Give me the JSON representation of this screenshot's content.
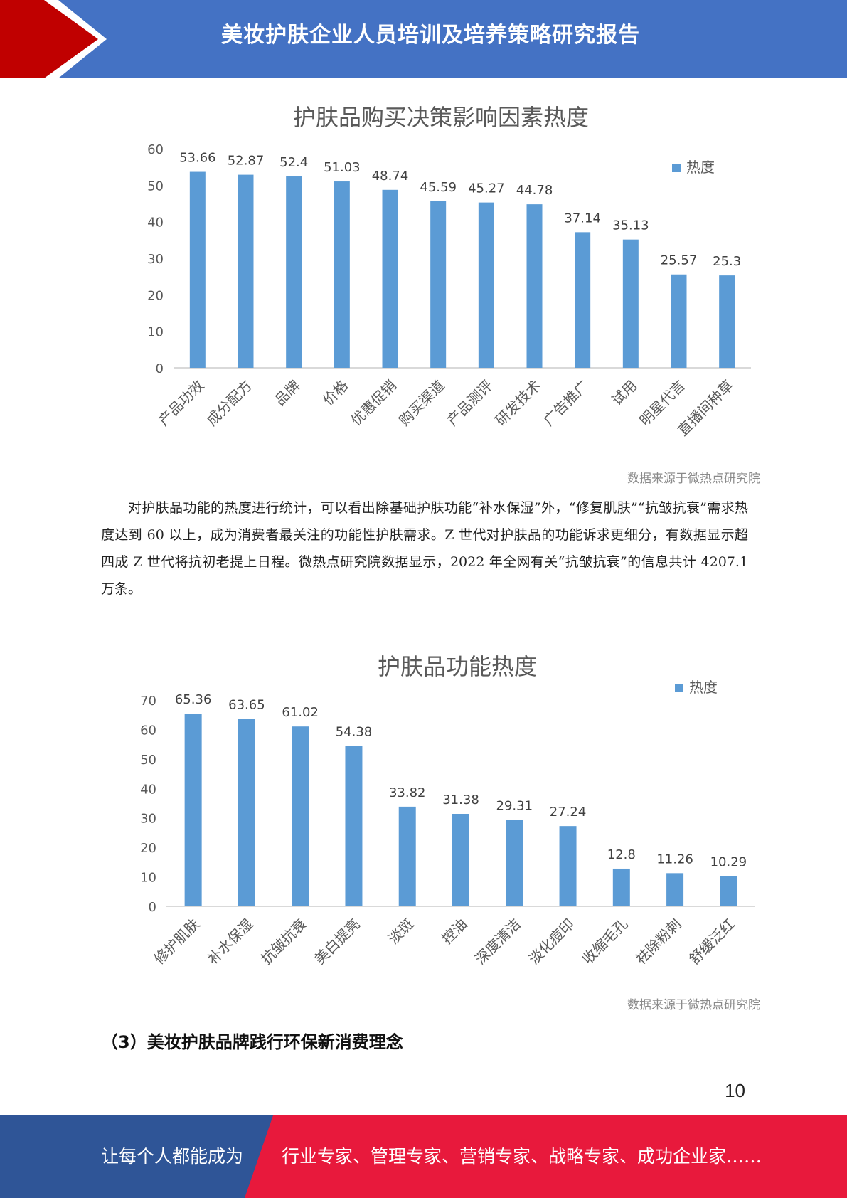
{
  "header": {
    "title": "美妆护肤企业人员培训及培养策略研究报告",
    "colors": {
      "blue": "#4472c4",
      "red": "#c00000"
    }
  },
  "chart_data": [
    {
      "type": "bar",
      "title": "护肤品购买决策影响因素热度",
      "categories": [
        "产品功效",
        "成分配方",
        "品牌",
        "价格",
        "优惠促销",
        "购买渠道",
        "产品测评",
        "研发技术",
        "广告推广",
        "试用",
        "明星代言",
        "直播间种草"
      ],
      "series": [
        {
          "name": "热度",
          "values": [
            53.66,
            52.87,
            52.4,
            51.03,
            48.74,
            45.59,
            45.27,
            44.78,
            37.14,
            35.13,
            25.57,
            25.3
          ],
          "color": "#5b9bd5"
        }
      ],
      "data_labels": [
        "53.66",
        "52.87",
        "52.4",
        "51.03",
        "48.74",
        "45.59",
        "45.27",
        "44.78",
        "37.14",
        "35.13",
        "25.57",
        "25.3"
      ],
      "yticks": [
        "0",
        "10",
        "20",
        "30",
        "40",
        "50",
        "60"
      ],
      "ylim": [
        0,
        60
      ],
      "legend": "top-right",
      "grid": false,
      "source": "数据来源于微热点研究院"
    },
    {
      "type": "bar",
      "title": "护肤品功能热度",
      "categories": [
        "修护肌肤",
        "补水保湿",
        "抗皱抗衰",
        "美白提亮",
        "淡斑",
        "控油",
        "深度清洁",
        "淡化痘印",
        "收缩毛孔",
        "祛除粉刺",
        "舒缓泛红"
      ],
      "series": [
        {
          "name": "热度",
          "values": [
            65.36,
            63.65,
            61.02,
            54.38,
            33.82,
            31.38,
            29.31,
            27.24,
            12.8,
            11.26,
            10.29
          ],
          "color": "#5b9bd5"
        }
      ],
      "data_labels": [
        "65.36",
        "63.65",
        "61.02",
        "54.38",
        "33.82",
        "31.38",
        "29.31",
        "27.24",
        "12.8",
        "11.26",
        "10.29"
      ],
      "yticks": [
        "0",
        "10",
        "20",
        "30",
        "40",
        "50",
        "60",
        "70"
      ],
      "ylim": [
        0,
        70
      ],
      "legend": "top-right",
      "grid": false,
      "source": "数据来源于微热点研究院"
    }
  ],
  "body": {
    "paragraph": "对护肤品功能的热度进行统计，可以看出除基础护肤功能“补水保湿”外，“修复肌肤”“抗皱抗衰”需求热度达到 60 以上，成为消费者最关注的功能性护肤需求。Z 世代对护肤品的功能诉求更细分，有数据显示超四成 Z 世代将抗初老提上日程。微热点研究院数据显示，2022 年全网有关“抗皱抗衰”的信息共计 4207.1 万条。",
    "section_heading": "（3）美妆护肤品牌践行环保新消费理念",
    "page_number": "10"
  },
  "footer": {
    "left_text": "让每个人都能成为",
    "right_text": "行业专家、管理专家、营销专家、战略专家、成功企业家……",
    "colors": {
      "blue": "#2f5597",
      "red": "#e8193c"
    }
  }
}
